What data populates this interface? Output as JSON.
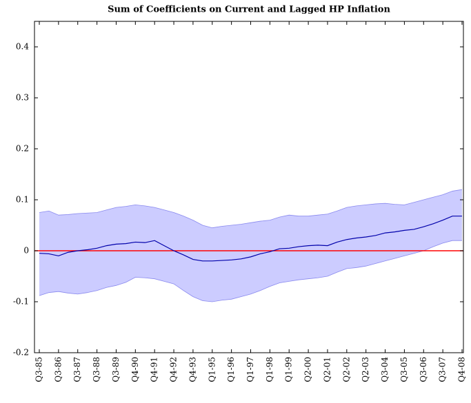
{
  "chart_data": {
    "type": "line",
    "title": "Sum of Coefficients on Current and Lagged HP Inflation",
    "categories": [
      "Q3-85",
      null,
      "Q3-86",
      null,
      "Q3-87",
      null,
      "Q3-88",
      null,
      "Q3-89",
      null,
      "Q4-90",
      null,
      "Q4-91",
      null,
      "Q4-92",
      null,
      "Q4-93",
      null,
      "Q1-95",
      null,
      "Q1-96",
      null,
      "Q1-97",
      null,
      "Q1-98",
      null,
      "Q1-99",
      null,
      "Q2-00",
      null,
      "Q2-01",
      null,
      "Q2-02",
      null,
      "Q2-03",
      null,
      "Q3-04",
      null,
      "Q3-05",
      null,
      "Q3-06",
      null,
      "Q3-07",
      null,
      "Q4-08"
    ],
    "series": [
      {
        "color": "#0000aa",
        "values": [
          -0.005,
          -0.006,
          -0.01,
          -0.003,
          0,
          0.002,
          0.005,
          0.01,
          0.013,
          0.014,
          0.017,
          0.016,
          0.02,
          0.01,
          0,
          -0.008,
          -0.017,
          -0.02,
          -0.02,
          -0.019,
          -0.018,
          -0.016,
          -0.012,
          -0.006,
          -0.002,
          0.004,
          0.005,
          0.008,
          0.01,
          0.011,
          0.01,
          0.017,
          0.022,
          0.025,
          0.027,
          0.03,
          0.035,
          0.037,
          0.04,
          0.042,
          0.047,
          0.053,
          0.06,
          0.068,
          0.068
        ]
      }
    ],
    "band": {
      "color": "#ccccff",
      "edge_color": "#8888ee",
      "upper": [
        0.075,
        0.078,
        0.07,
        0.071,
        0.073,
        0.074,
        0.075,
        0.08,
        0.085,
        0.087,
        0.09,
        0.088,
        0.085,
        0.08,
        0.075,
        0.068,
        0.06,
        0.05,
        0.045,
        0.048,
        0.05,
        0.052,
        0.055,
        0.058,
        0.06,
        0.066,
        0.07,
        0.068,
        0.068,
        0.07,
        0.072,
        0.078,
        0.085,
        0.088,
        0.09,
        0.092,
        0.093,
        0.091,
        0.09,
        0.095,
        0.1,
        0.105,
        0.11,
        0.117,
        0.12
      ],
      "lower": [
        -0.088,
        -0.082,
        -0.08,
        -0.083,
        -0.085,
        -0.082,
        -0.078,
        -0.072,
        -0.068,
        -0.062,
        -0.052,
        -0.053,
        -0.055,
        -0.06,
        -0.065,
        -0.078,
        -0.09,
        -0.098,
        -0.1,
        -0.097,
        -0.095,
        -0.09,
        -0.085,
        -0.078,
        -0.07,
        -0.063,
        -0.06,
        -0.057,
        -0.055,
        -0.053,
        -0.05,
        -0.042,
        -0.035,
        -0.033,
        -0.03,
        -0.025,
        -0.02,
        -0.015,
        -0.01,
        -0.005,
        0,
        0.008,
        0.015,
        0.02,
        0.02
      ]
    },
    "hline": {
      "value": 0,
      "color": "#ff0000"
    },
    "ylim": [
      -0.2,
      0.45
    ],
    "yticks": [
      -0.2,
      -0.1,
      0,
      0.1,
      0.2,
      0.3,
      0.4
    ]
  }
}
